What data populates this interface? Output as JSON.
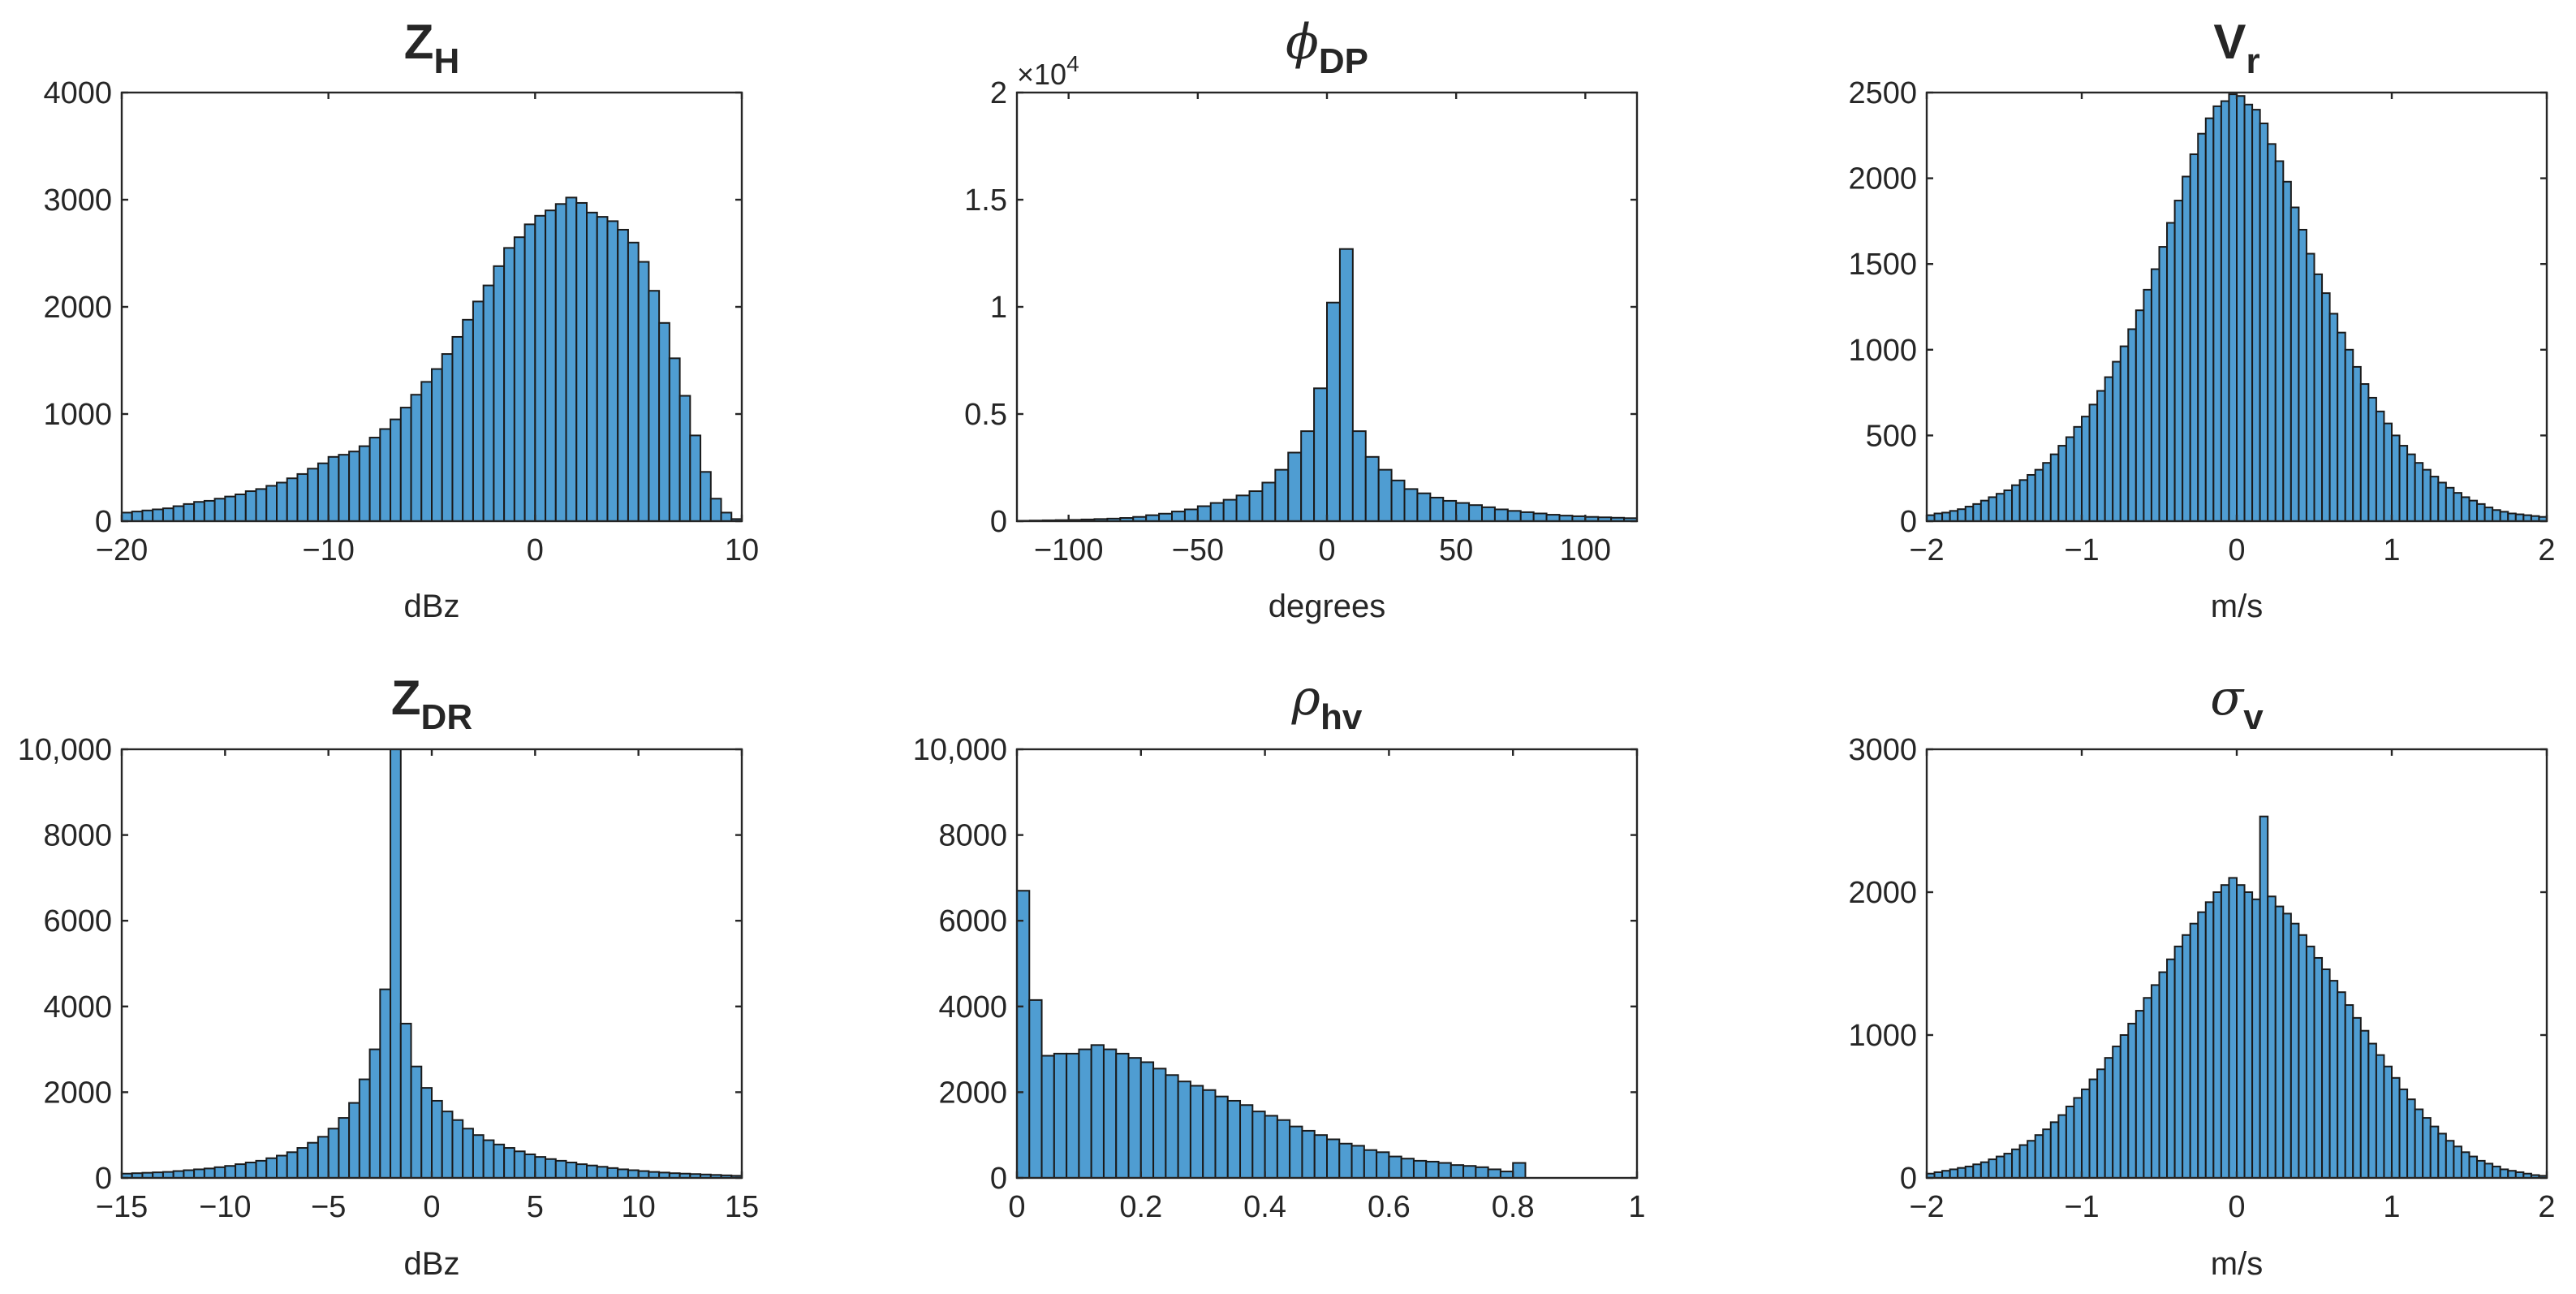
{
  "chart_data": [
    {
      "type": "bar",
      "id": "zh",
      "title": {
        "main": "Z",
        "sub": "H",
        "greek": false
      },
      "xlabel": "dBz",
      "ylabel": "",
      "xlim": [
        -20,
        10
      ],
      "ylim": [
        0,
        4000
      ],
      "xticks": [
        -20,
        -10,
        0,
        10
      ],
      "yticks": [
        0,
        1000,
        2000,
        3000,
        4000
      ],
      "xtick_labels": [
        "−20",
        "−10",
        "0",
        "10"
      ],
      "ytick_labels": [
        "0",
        "1000",
        "2000",
        "3000",
        "4000"
      ],
      "exponent": "",
      "bin_start": -20,
      "bin_width": 0.5,
      "values": [
        80,
        90,
        100,
        110,
        120,
        140,
        160,
        180,
        190,
        210,
        230,
        250,
        280,
        300,
        330,
        360,
        400,
        440,
        490,
        540,
        600,
        620,
        650,
        700,
        780,
        860,
        950,
        1060,
        1180,
        1300,
        1420,
        1560,
        1720,
        1880,
        2050,
        2200,
        2380,
        2550,
        2650,
        2770,
        2850,
        2900,
        2960,
        3020,
        2970,
        2880,
        2840,
        2800,
        2720,
        2600,
        2420,
        2150,
        1850,
        1520,
        1170,
        800,
        460,
        210,
        80,
        20
      ]
    },
    {
      "type": "bar",
      "id": "phidp",
      "title": {
        "main": "ϕ",
        "sub": "DP",
        "greek": true
      },
      "xlabel": "degrees",
      "ylabel": "",
      "xlim": [
        -120,
        120
      ],
      "ylim": [
        0,
        2
      ],
      "xticks": [
        -100,
        -50,
        0,
        50,
        100
      ],
      "yticks": [
        0,
        0.5,
        1,
        1.5,
        2
      ],
      "xtick_labels": [
        "−100",
        "−50",
        "0",
        "50",
        "100"
      ],
      "ytick_labels": [
        "0",
        "0.5",
        "1",
        "1.5",
        "2"
      ],
      "exponent": "×10^4",
      "exponent_base": "×10",
      "exponent_power": "4",
      "bin_start": -120,
      "bin_width": 5,
      "values": [
        0.002,
        0.003,
        0.004,
        0.005,
        0.006,
        0.008,
        0.01,
        0.012,
        0.015,
        0.02,
        0.028,
        0.035,
        0.045,
        0.055,
        0.07,
        0.085,
        0.1,
        0.12,
        0.14,
        0.18,
        0.24,
        0.32,
        0.42,
        0.62,
        1.02,
        1.27,
        0.42,
        0.3,
        0.24,
        0.19,
        0.15,
        0.13,
        0.11,
        0.095,
        0.085,
        0.075,
        0.065,
        0.055,
        0.048,
        0.042,
        0.036,
        0.03,
        0.026,
        0.023,
        0.02,
        0.018,
        0.016,
        0.014
      ]
    },
    {
      "type": "bar",
      "id": "vr",
      "title": {
        "main": "V",
        "sub": "r",
        "greek": false
      },
      "xlabel": "m/s",
      "ylabel": "",
      "xlim": [
        -2,
        2
      ],
      "ylim": [
        0,
        2500
      ],
      "xticks": [
        -2,
        -1,
        0,
        1,
        2
      ],
      "yticks": [
        0,
        500,
        1000,
        1500,
        2000,
        2500
      ],
      "xtick_labels": [
        "−2",
        "−1",
        "0",
        "1",
        "2"
      ],
      "ytick_labels": [
        "0",
        "500",
        "1000",
        "1500",
        "2000",
        "2500"
      ],
      "exponent": "",
      "bin_start": -2,
      "bin_width": 0.05,
      "values": [
        35,
        45,
        50,
        60,
        70,
        85,
        100,
        120,
        140,
        160,
        180,
        210,
        240,
        270,
        300,
        340,
        390,
        440,
        490,
        550,
        610,
        680,
        760,
        840,
        930,
        1020,
        1120,
        1230,
        1350,
        1470,
        1600,
        1740,
        1870,
        2010,
        2140,
        2260,
        2350,
        2420,
        2450,
        2490,
        2480,
        2430,
        2400,
        2320,
        2200,
        2100,
        1980,
        1830,
        1700,
        1560,
        1440,
        1330,
        1210,
        1100,
        1000,
        900,
        800,
        720,
        640,
        570,
        500,
        440,
        390,
        340,
        300,
        260,
        225,
        195,
        165,
        140,
        120,
        100,
        80,
        65,
        55,
        45,
        40,
        35,
        30,
        25
      ]
    },
    {
      "type": "bar",
      "id": "zdr",
      "title": {
        "main": "Z",
        "sub": "DR",
        "greek": false
      },
      "xlabel": "dBz",
      "ylabel": "",
      "xlim": [
        -15,
        15
      ],
      "ylim": [
        0,
        10000
      ],
      "xticks": [
        -15,
        -10,
        -5,
        0,
        5,
        10,
        15
      ],
      "yticks": [
        0,
        2000,
        4000,
        6000,
        8000,
        10000
      ],
      "xtick_labels": [
        "−15",
        "−10",
        "−5",
        "0",
        "5",
        "10",
        "15"
      ],
      "ytick_labels": [
        "0",
        "2000",
        "4000",
        "6000",
        "8000",
        "10,000"
      ],
      "exponent": "",
      "bin_start": -15,
      "bin_width": 0.5,
      "values": [
        100,
        110,
        120,
        130,
        140,
        160,
        180,
        200,
        220,
        250,
        280,
        320,
        360,
        400,
        460,
        520,
        600,
        700,
        820,
        960,
        1150,
        1400,
        1750,
        2300,
        3000,
        4400,
        10000,
        3600,
        2600,
        2100,
        1800,
        1550,
        1350,
        1150,
        1000,
        880,
        780,
        700,
        620,
        550,
        490,
        440,
        400,
        360,
        320,
        290,
        260,
        230,
        200,
        180,
        160,
        140,
        125,
        110,
        100,
        90,
        80,
        70,
        60,
        50
      ]
    },
    {
      "type": "bar",
      "id": "rhohv",
      "title": {
        "main": "ρ",
        "sub": "hv",
        "greek": true
      },
      "xlabel": "",
      "ylabel": "",
      "xlim": [
        0,
        1
      ],
      "ylim": [
        0,
        10000
      ],
      "xticks": [
        0,
        0.2,
        0.4,
        0.6,
        0.8,
        1
      ],
      "yticks": [
        0,
        2000,
        4000,
        6000,
        8000,
        10000
      ],
      "xtick_labels": [
        "0",
        "0.2",
        "0.4",
        "0.6",
        "0.8",
        "1"
      ],
      "ytick_labels": [
        "0",
        "2000",
        "4000",
        "6000",
        "8000",
        "10,000"
      ],
      "exponent": "",
      "bin_start": 0,
      "bin_width": 0.02,
      "values": [
        6700,
        4150,
        2850,
        2900,
        2900,
        3000,
        3100,
        3000,
        2900,
        2800,
        2700,
        2550,
        2400,
        2250,
        2150,
        2050,
        1900,
        1800,
        1700,
        1550,
        1450,
        1350,
        1200,
        1100,
        1000,
        900,
        800,
        750,
        650,
        600,
        500,
        450,
        400,
        380,
        350,
        300,
        280,
        250,
        200,
        150,
        350,
        0,
        0,
        0,
        0,
        0,
        0,
        0,
        0,
        0
      ]
    },
    {
      "type": "bar",
      "id": "sigmav",
      "title": {
        "main": "σ",
        "sub": "v",
        "greek": true
      },
      "xlabel": "m/s",
      "ylabel": "",
      "xlim": [
        -2,
        2
      ],
      "ylim": [
        0,
        3000
      ],
      "xticks": [
        -2,
        -1,
        0,
        1,
        2
      ],
      "yticks": [
        0,
        1000,
        2000,
        3000
      ],
      "xtick_labels": [
        "−2",
        "−1",
        "0",
        "1",
        "2"
      ],
      "ytick_labels": [
        "0",
        "1000",
        "2000",
        "3000"
      ],
      "exponent": "",
      "bin_start": -2,
      "bin_width": 0.05,
      "values": [
        30,
        40,
        50,
        60,
        70,
        80,
        95,
        110,
        130,
        150,
        170,
        200,
        230,
        260,
        300,
        340,
        390,
        440,
        500,
        560,
        620,
        690,
        760,
        840,
        920,
        1000,
        1080,
        1170,
        1260,
        1350,
        1440,
        1530,
        1620,
        1700,
        1780,
        1860,
        1930,
        2000,
        2050,
        2100,
        2050,
        2000,
        1950,
        2530,
        1970,
        1900,
        1850,
        1780,
        1700,
        1620,
        1540,
        1460,
        1380,
        1300,
        1210,
        1120,
        1030,
        940,
        860,
        780,
        700,
        620,
        550,
        480,
        420,
        360,
        310,
        260,
        220,
        180,
        150,
        120,
        100,
        80,
        60,
        50,
        40,
        30,
        20,
        15
      ]
    }
  ]
}
